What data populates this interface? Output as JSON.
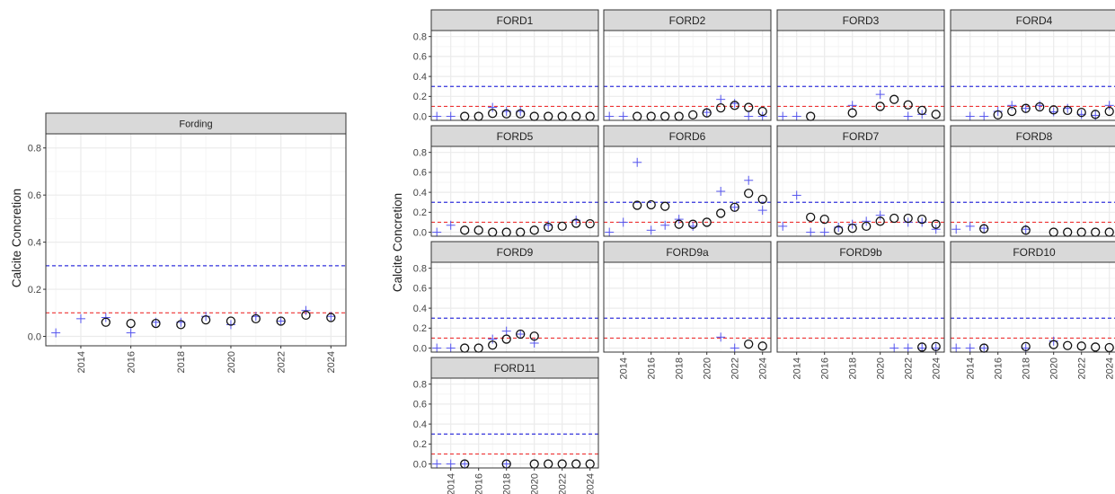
{
  "colors": {
    "strip_bg": "#d9d9d9",
    "strip_border": "#333333",
    "grid_major": "#ebebeb",
    "grid_minor": "#f5f5f5",
    "threshold_high": "#3333dd",
    "threshold_low": "#ee3333",
    "observed_marker": "#111111",
    "plus_marker": "#5555ee"
  },
  "chart_data": [
    {
      "type": "scatter",
      "panel": "Fording",
      "ylabel": "Calcite Concretion",
      "xlabel": "",
      "x_ticks": [
        "2014",
        "2016",
        "2018",
        "2020",
        "2022",
        "2024"
      ],
      "y_ticks": [
        "0.0",
        "0.2",
        "0.4",
        "0.6",
        "0.8"
      ],
      "xlim": [
        2012.6,
        2024.6
      ],
      "ylim": [
        -0.04,
        0.86
      ],
      "hlines": [
        0.3,
        0.1
      ],
      "series": [
        {
          "marker": "circle",
          "points": [
            [
              2015,
              0.06
            ],
            [
              2016,
              0.055
            ],
            [
              2017,
              0.055
            ],
            [
              2018,
              0.05
            ],
            [
              2019,
              0.07
            ],
            [
              2020,
              0.065
            ],
            [
              2021,
              0.075
            ],
            [
              2022,
              0.065
            ],
            [
              2023,
              0.09
            ],
            [
              2024,
              0.08
            ]
          ]
        },
        {
          "marker": "plus",
          "points": [
            [
              2013,
              0.015
            ],
            [
              2014,
              0.075
            ],
            [
              2015,
              0.08
            ],
            [
              2016,
              0.015
            ],
            [
              2017,
              0.06
            ],
            [
              2018,
              0.06
            ],
            [
              2019,
              0.085
            ],
            [
              2020,
              0.05
            ],
            [
              2021,
              0.085
            ],
            [
              2022,
              0.065
            ],
            [
              2023,
              0.11
            ],
            [
              2024,
              0.085
            ]
          ]
        }
      ]
    },
    {
      "type": "scatter",
      "facet_grid": true,
      "ylabel": "Calcite Concretion",
      "x_ticks": [
        "2014",
        "2016",
        "2018",
        "2020",
        "2022",
        "2024"
      ],
      "y_ticks": [
        "0.0",
        "0.2",
        "0.4",
        "0.6",
        "0.8"
      ],
      "xlim": [
        2012.6,
        2024.6
      ],
      "ylim": [
        -0.04,
        0.86
      ],
      "hlines": [
        0.3,
        0.1
      ],
      "panels": [
        {
          "name": "FORD1",
          "circles": [
            [
              2015,
              0
            ],
            [
              2016,
              0
            ],
            [
              2017,
              0.03
            ],
            [
              2018,
              0.025
            ],
            [
              2019,
              0.025
            ],
            [
              2020,
              0
            ],
            [
              2021,
              0
            ],
            [
              2022,
              0
            ],
            [
              2023,
              0
            ],
            [
              2024,
              0
            ]
          ],
          "plus": [
            [
              2013,
              0
            ],
            [
              2014,
              0
            ],
            [
              2017,
              0.09
            ],
            [
              2018,
              0.05
            ],
            [
              2019,
              0.05
            ]
          ]
        },
        {
          "name": "FORD2",
          "circles": [
            [
              2015,
              0
            ],
            [
              2016,
              0
            ],
            [
              2017,
              0
            ],
            [
              2018,
              0
            ],
            [
              2019,
              0.015
            ],
            [
              2020,
              0.035
            ],
            [
              2021,
              0.085
            ],
            [
              2022,
              0.11
            ],
            [
              2023,
              0.09
            ],
            [
              2024,
              0.05
            ]
          ],
          "plus": [
            [
              2013,
              0
            ],
            [
              2014,
              0
            ],
            [
              2020,
              0.04
            ],
            [
              2021,
              0.17
            ],
            [
              2022,
              0.13
            ],
            [
              2023,
              0
            ],
            [
              2024,
              0
            ]
          ]
        },
        {
          "name": "FORD3",
          "circles": [
            [
              2015,
              0
            ],
            [
              2018,
              0.035
            ],
            [
              2020,
              0.1
            ],
            [
              2021,
              0.17
            ],
            [
              2022,
              0.115
            ],
            [
              2023,
              0.06
            ],
            [
              2024,
              0.02
            ]
          ],
          "plus": [
            [
              2013,
              0
            ],
            [
              2014,
              0
            ],
            [
              2018,
              0.11
            ],
            [
              2020,
              0.22
            ],
            [
              2022,
              0
            ],
            [
              2023,
              0.02
            ]
          ]
        },
        {
          "name": "FORD4",
          "circles": [
            [
              2016,
              0.015
            ],
            [
              2017,
              0.05
            ],
            [
              2018,
              0.08
            ],
            [
              2019,
              0.095
            ],
            [
              2020,
              0.065
            ],
            [
              2021,
              0.06
            ],
            [
              2022,
              0.04
            ],
            [
              2023,
              0.02
            ],
            [
              2024,
              0.05
            ]
          ],
          "plus": [
            [
              2014,
              0
            ],
            [
              2015,
              0
            ],
            [
              2016,
              0.05
            ],
            [
              2017,
              0.11
            ],
            [
              2018,
              0.08
            ],
            [
              2019,
              0.11
            ],
            [
              2020,
              0.045
            ],
            [
              2021,
              0.08
            ],
            [
              2022,
              0.02
            ],
            [
              2023,
              0.01
            ],
            [
              2024,
              0.11
            ]
          ]
        },
        {
          "name": "FORD5",
          "circles": [
            [
              2015,
              0.02
            ],
            [
              2016,
              0.02
            ],
            [
              2017,
              0
            ],
            [
              2018,
              0
            ],
            [
              2019,
              0
            ],
            [
              2020,
              0.02
            ],
            [
              2021,
              0.05
            ],
            [
              2022,
              0.06
            ],
            [
              2023,
              0.09
            ],
            [
              2024,
              0.085
            ]
          ],
          "plus": [
            [
              2013,
              0
            ],
            [
              2014,
              0.07
            ],
            [
              2021,
              0.07
            ],
            [
              2023,
              0.12
            ]
          ]
        },
        {
          "name": "FORD6",
          "circles": [
            [
              2015,
              0.27
            ],
            [
              2016,
              0.275
            ],
            [
              2017,
              0.26
            ],
            [
              2018,
              0.08
            ],
            [
              2019,
              0.08
            ],
            [
              2020,
              0.1
            ],
            [
              2021,
              0.19
            ],
            [
              2022,
              0.25
            ],
            [
              2023,
              0.39
            ],
            [
              2024,
              0.33
            ]
          ],
          "plus": [
            [
              2013,
              0
            ],
            [
              2014,
              0.1
            ],
            [
              2015,
              0.7
            ],
            [
              2016,
              0.02
            ],
            [
              2017,
              0.07
            ],
            [
              2018,
              0.13
            ],
            [
              2019,
              0.06
            ],
            [
              2021,
              0.41
            ],
            [
              2022,
              0.25
            ],
            [
              2023,
              0.52
            ],
            [
              2024,
              0.22
            ]
          ]
        },
        {
          "name": "FORD7",
          "circles": [
            [
              2015,
              0.15
            ],
            [
              2016,
              0.13
            ],
            [
              2017,
              0.02
            ],
            [
              2018,
              0.04
            ],
            [
              2019,
              0.06
            ],
            [
              2020,
              0.11
            ],
            [
              2021,
              0.14
            ],
            [
              2022,
              0.14
            ],
            [
              2023,
              0.13
            ],
            [
              2024,
              0.08
            ]
          ],
          "plus": [
            [
              2013,
              0.06
            ],
            [
              2014,
              0.37
            ],
            [
              2015,
              0
            ],
            [
              2016,
              0
            ],
            [
              2017,
              0.05
            ],
            [
              2018,
              0.08
            ],
            [
              2019,
              0.11
            ],
            [
              2020,
              0.17
            ],
            [
              2022,
              0.1
            ],
            [
              2023,
              0.1
            ],
            [
              2024,
              0.03
            ]
          ]
        },
        {
          "name": "FORD8",
          "circles": [
            [
              2015,
              0.035
            ],
            [
              2018,
              0.02
            ],
            [
              2020,
              0
            ],
            [
              2021,
              0
            ],
            [
              2022,
              0
            ],
            [
              2023,
              0
            ],
            [
              2024,
              0
            ]
          ],
          "plus": [
            [
              2013,
              0.03
            ],
            [
              2014,
              0.06
            ],
            [
              2015,
              0.04
            ],
            [
              2018,
              0.03
            ]
          ]
        },
        {
          "name": "FORD9",
          "circles": [
            [
              2015,
              0
            ],
            [
              2016,
              0
            ],
            [
              2017,
              0.03
            ],
            [
              2018,
              0.09
            ],
            [
              2019,
              0.14
            ],
            [
              2020,
              0.12
            ]
          ],
          "plus": [
            [
              2013,
              0
            ],
            [
              2014,
              0
            ],
            [
              2017,
              0.09
            ],
            [
              2018,
              0.17
            ],
            [
              2019,
              0.14
            ],
            [
              2020,
              0.05
            ]
          ]
        },
        {
          "name": "FORD9a",
          "circles": [
            [
              2023,
              0.04
            ],
            [
              2024,
              0.02
            ]
          ],
          "plus": [
            [
              2021,
              0.11
            ],
            [
              2022,
              0
            ]
          ]
        },
        {
          "name": "FORD9b",
          "circles": [
            [
              2023,
              0.01
            ],
            [
              2024,
              0.015
            ]
          ],
          "plus": [
            [
              2021,
              0
            ],
            [
              2022,
              0
            ],
            [
              2023,
              0
            ],
            [
              2024,
              0
            ]
          ]
        },
        {
          "name": "FORD10",
          "circles": [
            [
              2015,
              0
            ],
            [
              2018,
              0.015
            ],
            [
              2020,
              0.035
            ],
            [
              2021,
              0.025
            ],
            [
              2022,
              0.02
            ],
            [
              2023,
              0.01
            ],
            [
              2024,
              0.005
            ]
          ],
          "plus": [
            [
              2013,
              0
            ],
            [
              2014,
              0
            ],
            [
              2015,
              0
            ],
            [
              2018,
              0
            ],
            [
              2020,
              0.07
            ]
          ]
        },
        {
          "name": "FORD11",
          "circles": [
            [
              2015,
              0
            ],
            [
              2018,
              0
            ],
            [
              2020,
              0
            ],
            [
              2021,
              0
            ],
            [
              2022,
              0
            ],
            [
              2023,
              0
            ],
            [
              2024,
              0
            ]
          ],
          "plus": [
            [
              2013,
              0
            ],
            [
              2014,
              0
            ],
            [
              2015,
              0
            ],
            [
              2018,
              0
            ]
          ]
        }
      ]
    }
  ]
}
